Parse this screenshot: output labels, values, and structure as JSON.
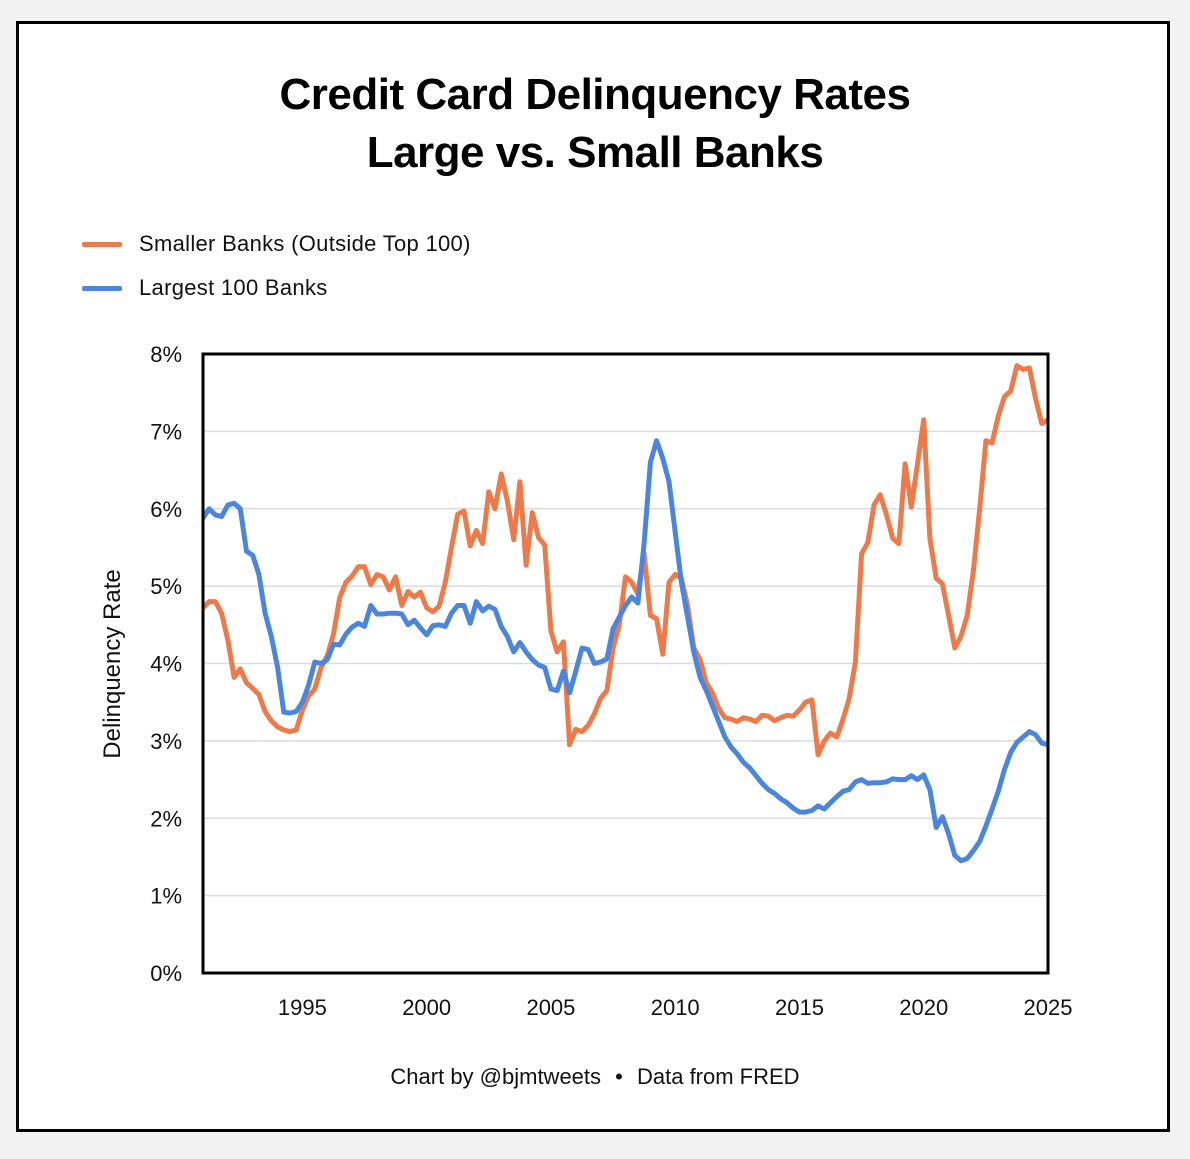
{
  "chart_data": {
    "type": "line",
    "title_lines": [
      "Credit Card Delinquency Rates",
      "Large vs. Small Banks"
    ],
    "ylabel": "Delinquency Rate",
    "xlabel": "",
    "xlim": [
      1991,
      2025
    ],
    "ylim": [
      0,
      8
    ],
    "x_ticks": [
      1995,
      2000,
      2005,
      2010,
      2015,
      2020,
      2025
    ],
    "y_ticks": [
      "0%",
      "1%",
      "2%",
      "3%",
      "4%",
      "5%",
      "6%",
      "7%",
      "8%"
    ],
    "grid": "horizontal",
    "legend_position": "top-left",
    "series": [
      {
        "name": "Smaller Banks (Outside Top 100)",
        "color": "#ec7a4a",
        "points": [
          [
            1991.0,
            4.72
          ],
          [
            1991.25,
            4.8
          ],
          [
            1991.5,
            4.8
          ],
          [
            1991.75,
            4.65
          ],
          [
            1992.0,
            4.3
          ],
          [
            1992.25,
            3.82
          ],
          [
            1992.5,
            3.93
          ],
          [
            1992.75,
            3.75
          ],
          [
            1993.0,
            3.68
          ],
          [
            1993.25,
            3.6
          ],
          [
            1993.5,
            3.38
          ],
          [
            1993.75,
            3.26
          ],
          [
            1994.0,
            3.18
          ],
          [
            1994.25,
            3.14
          ],
          [
            1994.5,
            3.12
          ],
          [
            1994.75,
            3.14
          ],
          [
            1995.0,
            3.4
          ],
          [
            1995.25,
            3.58
          ],
          [
            1995.5,
            3.67
          ],
          [
            1995.75,
            3.95
          ],
          [
            1996.0,
            4.1
          ],
          [
            1996.25,
            4.38
          ],
          [
            1996.5,
            4.85
          ],
          [
            1996.75,
            5.05
          ],
          [
            1997.0,
            5.13
          ],
          [
            1997.25,
            5.25
          ],
          [
            1997.5,
            5.25
          ],
          [
            1997.75,
            5.02
          ],
          [
            1998.0,
            5.15
          ],
          [
            1998.25,
            5.12
          ],
          [
            1998.5,
            4.95
          ],
          [
            1998.75,
            5.12
          ],
          [
            1999.0,
            4.75
          ],
          [
            1999.25,
            4.93
          ],
          [
            1999.5,
            4.86
          ],
          [
            1999.75,
            4.92
          ],
          [
            2000.0,
            4.72
          ],
          [
            2000.25,
            4.67
          ],
          [
            2000.5,
            4.74
          ],
          [
            2000.75,
            5.05
          ],
          [
            2001.0,
            5.5
          ],
          [
            2001.25,
            5.93
          ],
          [
            2001.5,
            5.97
          ],
          [
            2001.75,
            5.52
          ],
          [
            2002.0,
            5.72
          ],
          [
            2002.25,
            5.55
          ],
          [
            2002.5,
            6.22
          ],
          [
            2002.75,
            6.0
          ],
          [
            2003.0,
            6.45
          ],
          [
            2003.25,
            6.1
          ],
          [
            2003.5,
            5.6
          ],
          [
            2003.75,
            6.35
          ],
          [
            2004.0,
            5.27
          ],
          [
            2004.25,
            5.95
          ],
          [
            2004.5,
            5.63
          ],
          [
            2004.75,
            5.53
          ],
          [
            2005.0,
            4.42
          ],
          [
            2005.25,
            4.15
          ],
          [
            2005.5,
            4.28
          ],
          [
            2005.75,
            2.95
          ],
          [
            2006.0,
            3.15
          ],
          [
            2006.25,
            3.12
          ],
          [
            2006.5,
            3.2
          ],
          [
            2006.75,
            3.35
          ],
          [
            2007.0,
            3.55
          ],
          [
            2007.25,
            3.65
          ],
          [
            2007.5,
            4.2
          ],
          [
            2007.75,
            4.5
          ],
          [
            2008.0,
            5.12
          ],
          [
            2008.25,
            5.05
          ],
          [
            2008.5,
            4.9
          ],
          [
            2008.75,
            5.42
          ],
          [
            2009.0,
            4.62
          ],
          [
            2009.25,
            4.58
          ],
          [
            2009.5,
            4.12
          ],
          [
            2009.75,
            5.05
          ],
          [
            2010.0,
            5.15
          ],
          [
            2010.25,
            5.1
          ],
          [
            2010.5,
            4.75
          ],
          [
            2010.75,
            4.2
          ],
          [
            2011.0,
            4.05
          ],
          [
            2011.25,
            3.75
          ],
          [
            2011.5,
            3.62
          ],
          [
            2011.75,
            3.42
          ],
          [
            2012.0,
            3.3
          ],
          [
            2012.25,
            3.28
          ],
          [
            2012.5,
            3.25
          ],
          [
            2012.75,
            3.3
          ],
          [
            2013.0,
            3.28
          ],
          [
            2013.25,
            3.25
          ],
          [
            2013.5,
            3.33
          ],
          [
            2013.75,
            3.32
          ],
          [
            2014.0,
            3.26
          ],
          [
            2014.25,
            3.3
          ],
          [
            2014.5,
            3.33
          ],
          [
            2014.75,
            3.32
          ],
          [
            2015.0,
            3.4
          ],
          [
            2015.25,
            3.5
          ],
          [
            2015.5,
            3.53
          ],
          [
            2015.75,
            2.82
          ],
          [
            2016.0,
            3.0
          ],
          [
            2016.25,
            3.1
          ],
          [
            2016.5,
            3.05
          ],
          [
            2016.75,
            3.28
          ],
          [
            2017.0,
            3.55
          ],
          [
            2017.25,
            4.02
          ],
          [
            2017.5,
            5.42
          ],
          [
            2017.75,
            5.56
          ],
          [
            2018.0,
            6.05
          ],
          [
            2018.25,
            6.18
          ],
          [
            2018.5,
            5.92
          ],
          [
            2018.75,
            5.62
          ],
          [
            2019.0,
            5.55
          ],
          [
            2019.25,
            6.58
          ],
          [
            2019.5,
            6.02
          ],
          [
            2019.75,
            6.58
          ],
          [
            2020.0,
            7.15
          ],
          [
            2020.25,
            5.62
          ],
          [
            2020.5,
            5.1
          ],
          [
            2020.75,
            5.03
          ],
          [
            2021.0,
            4.62
          ],
          [
            2021.25,
            4.2
          ],
          [
            2021.5,
            4.35
          ],
          [
            2021.75,
            4.62
          ],
          [
            2022.0,
            5.2
          ],
          [
            2022.25,
            6.0
          ],
          [
            2022.5,
            6.88
          ],
          [
            2022.75,
            6.85
          ],
          [
            2023.0,
            7.2
          ],
          [
            2023.25,
            7.45
          ],
          [
            2023.5,
            7.52
          ],
          [
            2023.75,
            7.85
          ],
          [
            2024.0,
            7.8
          ],
          [
            2024.25,
            7.82
          ],
          [
            2024.5,
            7.42
          ],
          [
            2024.75,
            7.1
          ],
          [
            2025.0,
            7.15
          ]
        ]
      },
      {
        "name": "Largest 100 Banks",
        "color": "#4b86dc",
        "points": [
          [
            1991.0,
            5.88
          ],
          [
            1991.25,
            6.0
          ],
          [
            1991.5,
            5.92
          ],
          [
            1991.75,
            5.9
          ],
          [
            1992.0,
            6.05
          ],
          [
            1992.25,
            6.07
          ],
          [
            1992.5,
            6.0
          ],
          [
            1992.75,
            5.45
          ],
          [
            1993.0,
            5.4
          ],
          [
            1993.25,
            5.15
          ],
          [
            1993.5,
            4.65
          ],
          [
            1993.75,
            4.35
          ],
          [
            1994.0,
            3.95
          ],
          [
            1994.25,
            3.37
          ],
          [
            1994.5,
            3.36
          ],
          [
            1994.75,
            3.38
          ],
          [
            1995.0,
            3.5
          ],
          [
            1995.25,
            3.72
          ],
          [
            1995.5,
            4.02
          ],
          [
            1995.75,
            4.0
          ],
          [
            1996.0,
            4.05
          ],
          [
            1996.25,
            4.25
          ],
          [
            1996.5,
            4.24
          ],
          [
            1996.75,
            4.38
          ],
          [
            1997.0,
            4.47
          ],
          [
            1997.25,
            4.52
          ],
          [
            1997.5,
            4.48
          ],
          [
            1997.75,
            4.75
          ],
          [
            1998.0,
            4.64
          ],
          [
            1998.25,
            4.64
          ],
          [
            1998.5,
            4.65
          ],
          [
            1998.75,
            4.65
          ],
          [
            1999.0,
            4.64
          ],
          [
            1999.25,
            4.5
          ],
          [
            1999.5,
            4.56
          ],
          [
            1999.75,
            4.46
          ],
          [
            2000.0,
            4.37
          ],
          [
            2000.25,
            4.49
          ],
          [
            2000.5,
            4.5
          ],
          [
            2000.75,
            4.48
          ],
          [
            2001.0,
            4.65
          ],
          [
            2001.25,
            4.75
          ],
          [
            2001.5,
            4.75
          ],
          [
            2001.75,
            4.52
          ],
          [
            2002.0,
            4.8
          ],
          [
            2002.25,
            4.68
          ],
          [
            2002.5,
            4.74
          ],
          [
            2002.75,
            4.7
          ],
          [
            2003.0,
            4.48
          ],
          [
            2003.25,
            4.35
          ],
          [
            2003.5,
            4.15
          ],
          [
            2003.75,
            4.27
          ],
          [
            2004.0,
            4.15
          ],
          [
            2004.25,
            4.05
          ],
          [
            2004.5,
            3.98
          ],
          [
            2004.75,
            3.95
          ],
          [
            2005.0,
            3.67
          ],
          [
            2005.25,
            3.65
          ],
          [
            2005.5,
            3.9
          ],
          [
            2005.75,
            3.62
          ],
          [
            2006.0,
            3.9
          ],
          [
            2006.25,
            4.2
          ],
          [
            2006.5,
            4.18
          ],
          [
            2006.75,
            4.0
          ],
          [
            2007.0,
            4.02
          ],
          [
            2007.25,
            4.06
          ],
          [
            2007.5,
            4.45
          ],
          [
            2007.75,
            4.6
          ],
          [
            2008.0,
            4.75
          ],
          [
            2008.25,
            4.86
          ],
          [
            2008.5,
            4.78
          ],
          [
            2008.75,
            5.55
          ],
          [
            2009.0,
            6.6
          ],
          [
            2009.25,
            6.88
          ],
          [
            2009.5,
            6.65
          ],
          [
            2009.75,
            6.35
          ],
          [
            2010.0,
            5.7
          ],
          [
            2010.25,
            5.05
          ],
          [
            2010.5,
            4.6
          ],
          [
            2010.75,
            4.15
          ],
          [
            2011.0,
            3.82
          ],
          [
            2011.25,
            3.65
          ],
          [
            2011.5,
            3.45
          ],
          [
            2011.75,
            3.25
          ],
          [
            2012.0,
            3.05
          ],
          [
            2012.25,
            2.92
          ],
          [
            2012.5,
            2.83
          ],
          [
            2012.75,
            2.72
          ],
          [
            2013.0,
            2.65
          ],
          [
            2013.25,
            2.55
          ],
          [
            2013.5,
            2.45
          ],
          [
            2013.75,
            2.37
          ],
          [
            2014.0,
            2.32
          ],
          [
            2014.25,
            2.25
          ],
          [
            2014.5,
            2.2
          ],
          [
            2014.75,
            2.13
          ],
          [
            2015.0,
            2.08
          ],
          [
            2015.25,
            2.08
          ],
          [
            2015.5,
            2.1
          ],
          [
            2015.75,
            2.16
          ],
          [
            2016.0,
            2.12
          ],
          [
            2016.25,
            2.2
          ],
          [
            2016.5,
            2.28
          ],
          [
            2016.75,
            2.35
          ],
          [
            2017.0,
            2.37
          ],
          [
            2017.25,
            2.47
          ],
          [
            2017.5,
            2.5
          ],
          [
            2017.75,
            2.45
          ],
          [
            2018.0,
            2.46
          ],
          [
            2018.25,
            2.46
          ],
          [
            2018.5,
            2.47
          ],
          [
            2018.75,
            2.51
          ],
          [
            2019.0,
            2.5
          ],
          [
            2019.25,
            2.5
          ],
          [
            2019.5,
            2.55
          ],
          [
            2019.75,
            2.5
          ],
          [
            2020.0,
            2.56
          ],
          [
            2020.25,
            2.37
          ],
          [
            2020.5,
            1.88
          ],
          [
            2020.75,
            2.02
          ],
          [
            2021.0,
            1.8
          ],
          [
            2021.25,
            1.52
          ],
          [
            2021.5,
            1.45
          ],
          [
            2021.75,
            1.48
          ],
          [
            2022.0,
            1.58
          ],
          [
            2022.25,
            1.7
          ],
          [
            2022.5,
            1.9
          ],
          [
            2022.75,
            2.12
          ],
          [
            2023.0,
            2.35
          ],
          [
            2023.25,
            2.63
          ],
          [
            2023.5,
            2.85
          ],
          [
            2023.75,
            2.98
          ],
          [
            2024.0,
            3.05
          ],
          [
            2024.25,
            3.12
          ],
          [
            2024.5,
            3.08
          ],
          [
            2024.75,
            2.97
          ],
          [
            2025.0,
            2.95
          ]
        ]
      }
    ]
  },
  "footer": {
    "credit": "Chart by @bjmtweets",
    "separator": "•",
    "source": "Data from FRED"
  }
}
